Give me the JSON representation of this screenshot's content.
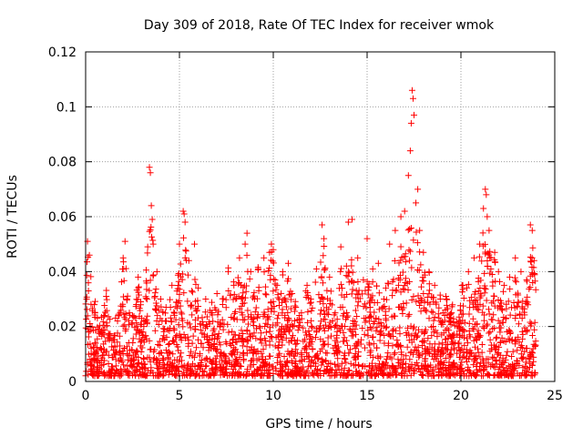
{
  "chart_data": {
    "type": "scatter",
    "title": "Day 309 of 2018, Rate Of TEC Index for receiver wmok",
    "xlabel": "GPS time / hours",
    "ylabel": "ROTI / TECUs",
    "xlim": [
      0,
      25
    ],
    "ylim": [
      0,
      0.12
    ],
    "x_ticks": [
      0,
      5,
      10,
      15,
      20,
      25
    ],
    "x_tick_labels": [
      "0",
      "5",
      "10",
      "15",
      "20",
      "25"
    ],
    "y_ticks": [
      0,
      0.02,
      0.04,
      0.06,
      0.08,
      0.1,
      0.12
    ],
    "y_tick_labels": [
      "0",
      "0.02",
      "0.04",
      "0.06",
      "0.08",
      "0.1",
      "0.12"
    ],
    "grid": true,
    "marker": "+",
    "colors": {
      "series": "#ff0000",
      "grid": "#a0a0a0",
      "axes": "#000000"
    },
    "series": [
      {
        "name": "ROTI",
        "x": [
          0.05,
          0.1,
          0.15,
          0.2,
          0.25,
          0.3,
          0.5,
          0.8,
          1.1,
          1.4,
          1.7,
          2.0,
          2.1,
          2.2,
          2.5,
          2.8,
          3.1,
          3.4,
          3.45,
          3.5,
          3.55,
          3.6,
          3.8,
          4.0,
          4.3,
          4.6,
          5.0,
          5.2,
          5.25,
          5.3,
          5.5,
          5.8,
          6.0,
          6.1,
          6.4,
          6.7,
          7.0,
          7.3,
          7.6,
          7.9,
          8.2,
          8.5,
          8.6,
          8.8,
          9.0,
          9.2,
          9.5,
          9.8,
          9.9,
          10.0,
          10.2,
          10.5,
          10.8,
          11.0,
          11.2,
          11.5,
          11.8,
          12.0,
          12.3,
          12.6,
          12.7,
          13.0,
          13.3,
          13.6,
          13.9,
          14.0,
          14.2,
          14.5,
          14.8,
          15.0,
          15.3,
          15.6,
          15.9,
          16.0,
          16.2,
          16.5,
          16.8,
          17.0,
          17.2,
          17.3,
          17.35,
          17.4,
          17.45,
          17.5,
          17.6,
          17.7,
          17.8,
          18.0,
          18.3,
          18.6,
          18.9,
          19.2,
          19.5,
          19.8,
          20.1,
          20.4,
          20.7,
          21.0,
          21.2,
          21.3,
          21.35,
          21.4,
          21.5,
          21.6,
          21.8,
          22.0,
          22.3,
          22.6,
          22.9,
          23.2,
          23.5,
          23.7,
          23.8,
          23.9
        ],
        "y": [
          0.03,
          0.051,
          0.033,
          0.046,
          0.02,
          0.012,
          0.025,
          0.018,
          0.031,
          0.015,
          0.022,
          0.045,
          0.051,
          0.03,
          0.024,
          0.038,
          0.02,
          0.078,
          0.076,
          0.064,
          0.059,
          0.05,
          0.04,
          0.03,
          0.022,
          0.035,
          0.05,
          0.062,
          0.061,
          0.058,
          0.044,
          0.05,
          0.034,
          0.021,
          0.03,
          0.025,
          0.032,
          0.028,
          0.04,
          0.035,
          0.045,
          0.05,
          0.054,
          0.04,
          0.03,
          0.041,
          0.045,
          0.047,
          0.05,
          0.048,
          0.035,
          0.04,
          0.043,
          0.032,
          0.027,
          0.025,
          0.035,
          0.03,
          0.041,
          0.057,
          0.052,
          0.038,
          0.025,
          0.049,
          0.042,
          0.058,
          0.059,
          0.045,
          0.037,
          0.052,
          0.041,
          0.043,
          0.03,
          0.034,
          0.05,
          0.055,
          0.06,
          0.062,
          0.075,
          0.084,
          0.094,
          0.106,
          0.103,
          0.097,
          0.065,
          0.07,
          0.055,
          0.047,
          0.04,
          0.035,
          0.03,
          0.031,
          0.025,
          0.02,
          0.035,
          0.04,
          0.045,
          0.05,
          0.063,
          0.07,
          0.068,
          0.06,
          0.055,
          0.045,
          0.047,
          0.04,
          0.035,
          0.038,
          0.045,
          0.04,
          0.037,
          0.057,
          0.055,
          0.044
        ]
      }
    ]
  }
}
